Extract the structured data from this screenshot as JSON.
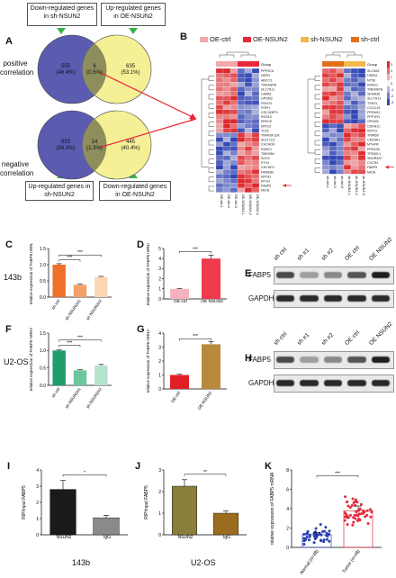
{
  "panelA": {
    "letter": "A",
    "top_left_box": "Down-regulated genes in sh-NSUN2",
    "top_right_box": "Up-regulated genes in OE-NSUN2",
    "bottom_left_box": "Up-regulated genes in sh-NSUN2",
    "bottom_right_box": "Down-regulated genes in OE-NSUN2",
    "positive_label": "positive correlation",
    "negative_label": "negative correlation",
    "venn_top": {
      "left": "555",
      "left_pct": "(46.4%)",
      "mid": "6",
      "mid_pct": "(0.5%)",
      "right": "635",
      "right_pct": "(53.1%)"
    },
    "venn_bottom": {
      "left": "653",
      "left_pct": "(59.3%)",
      "mid": "14",
      "mid_pct": "(1.3%)",
      "right": "445",
      "right_pct": "(40.4%)"
    }
  },
  "panelB": {
    "letter": "B",
    "legend": [
      {
        "label": "OE-ctrl",
        "color": "#f4a6b0"
      },
      {
        "label": "OE-NSUN2",
        "color": "#e8283a"
      },
      {
        "label": "sh-NSUN2",
        "color": "#f3b84a"
      },
      {
        "label": "sh-ctrl",
        "color": "#e0701a"
      }
    ],
    "group_label": "Group",
    "scale_ticks": [
      "3",
      "2",
      "1",
      "0",
      "-1",
      "-2",
      "-3"
    ],
    "left_genes": [
      "PPP3CA",
      "HEPH",
      "ABCC3",
      "TMEM87B",
      "SLC7A11",
      "LAMB1",
      "GPSM3",
      "FBXO3",
      "PSPH",
      "CDC42EP3",
      "RGS10",
      "PRKCE",
      "KRT23",
      "TLR2",
      "TNFRSF12A",
      "SULT1C2",
      "CHCHD6",
      "RASD1",
      "TMEM54",
      "SOX9",
      "ETV4",
      "CHCHD1",
      "FAM83B",
      "KRT81",
      "MT1G",
      "FABP5",
      "MICB"
    ],
    "left_samples": [
      "OE-ctrl-1",
      "OE-ctrl-2",
      "OE-ctrl-3",
      "OE-NSUN2-1",
      "OE-NSUN2-2",
      "OE-NSUN2-3"
    ],
    "right_genes": [
      "SLC5A9",
      "HSPA1",
      "NT5E",
      "RASD1",
      "TMEM87B",
      "SEMA3E",
      "SLC7A11",
      "TSHZ1",
      "CCDC15",
      "PRDM11",
      "PPP1R3",
      "GPSM3",
      "CDKN1C",
      "KRT23",
      "TRIM59",
      "CDK5R1",
      "MTHFR",
      "PRSS35",
      "TPD52L1",
      "SNORA27",
      "CXCR4",
      "FABP5",
      "MICB"
    ],
    "right_samples": [
      "sh-ctrl-1",
      "sh-ctrl-2",
      "sh-ctrl-3",
      "sh-NSUN2-1",
      "sh-NSUN2-2",
      "sh-NSUN2-3"
    ]
  },
  "panelC": {
    "letter": "C",
    "row_label": "143b",
    "ylabel": "relative expression of FABP5 mRNA",
    "chart_data": {
      "type": "bar",
      "categories": [
        "sh ctrl",
        "sh NSUN2#1",
        "sh NSUN2#2"
      ],
      "values": [
        1.0,
        0.38,
        0.62
      ],
      "errors": [
        0.03,
        0.02,
        0.02
      ],
      "colors": [
        "#f07029",
        "#f3a16a",
        "#fbd6b5"
      ],
      "ylim": [
        0,
        1.5
      ],
      "yticks": [
        0.0,
        0.5,
        1.0,
        1.5
      ],
      "sig": [
        "***",
        "***"
      ]
    }
  },
  "panelD": {
    "letter": "D",
    "ylabel": "relative expression of FABP5 mRNA",
    "chart_data": {
      "type": "bar",
      "categories": [
        "OE-ctrl",
        "OE NSUN2"
      ],
      "values": [
        1.0,
        4.0
      ],
      "errors": [
        0.05,
        0.35
      ],
      "colors": [
        "#f5b4bd",
        "#f03a4d"
      ],
      "ylim": [
        0,
        5
      ],
      "yticks": [
        0,
        1,
        2,
        3,
        4,
        5
      ],
      "sig": [
        "***"
      ]
    }
  },
  "panelE": {
    "letter": "E",
    "lanes": [
      "sh ctrl",
      "sh #1",
      "sh #2",
      "OE ctrl",
      "OE NSUN2"
    ],
    "rows": [
      "FABP5",
      "GAPDH"
    ]
  },
  "panelF": {
    "letter": "F",
    "row_label": "U2-OS",
    "ylabel": "relative expression of FABP5 mRNA",
    "chart_data": {
      "type": "bar",
      "categories": [
        "sh ctrl",
        "sh NSUN2#1",
        "sh NSUN2#2"
      ],
      "values": [
        1.0,
        0.43,
        0.57
      ],
      "errors": [
        0.02,
        0.02,
        0.03
      ],
      "colors": [
        "#1f9d6a",
        "#6cc79c",
        "#b7e3cc"
      ],
      "ylim": [
        0,
        1.5
      ],
      "yticks": [
        0.0,
        0.5,
        1.0,
        1.5
      ],
      "sig": [
        "***",
        "***"
      ]
    }
  },
  "panelG": {
    "letter": "G",
    "ylabel": "relative expression of FABP5 mRNA",
    "chart_data": {
      "type": "bar",
      "categories": [
        "OE-ctrl",
        "OE-NSUN2"
      ],
      "values": [
        1.0,
        3.2
      ],
      "errors": [
        0.05,
        0.2
      ],
      "colors": [
        "#e21f26",
        "#b88a3e"
      ],
      "ylim": [
        0,
        4
      ],
      "yticks": [
        0,
        1,
        2,
        3,
        4
      ],
      "sig": [
        "***"
      ]
    }
  },
  "panelH": {
    "letter": "H",
    "lanes": [
      "sh ctrl",
      "sh #1",
      "sh #2",
      "OE ctrl",
      "OE NSUN2"
    ],
    "rows": [
      "FABP5",
      "GAPDH"
    ]
  },
  "panelI": {
    "letter": "I",
    "caption": "143b",
    "ylabel": "RIP/input FABP5",
    "chart_data": {
      "type": "bar",
      "categories": [
        "NSUN2",
        "IgG"
      ],
      "values": [
        2.8,
        1.05
      ],
      "errors": [
        0.55,
        0.15
      ],
      "colors": [
        "#1a1a1a",
        "#8a8a8a"
      ],
      "ylim": [
        0,
        4
      ],
      "yticks": [
        0,
        1,
        2,
        3,
        4
      ],
      "sig": [
        "*"
      ]
    }
  },
  "panelJ": {
    "letter": "J",
    "caption": "U2-OS",
    "ylabel": "RIP/input FABP5",
    "chart_data": {
      "type": "bar",
      "categories": [
        "NSUN2",
        "IgG"
      ],
      "values": [
        2.25,
        1.0
      ],
      "errors": [
        0.3,
        0.1
      ],
      "colors": [
        "#8b7d3c",
        "#9b6b1f"
      ],
      "ylim": [
        0,
        3
      ],
      "yticks": [
        0,
        1,
        2,
        3
      ],
      "sig": [
        "**"
      ]
    }
  },
  "panelK": {
    "letter": "K",
    "ylabel": "relative expression of FABP5 mRNA",
    "chart_data": {
      "type": "scatter",
      "categories": [
        "Normal (n=48)",
        "Tumor (n=48)"
      ],
      "means": [
        1.3,
        3.8
      ],
      "sds": [
        0.65,
        1.2
      ],
      "colors": [
        "#2a3fb0",
        "#e8283a"
      ],
      "ylim": [
        0,
        8
      ],
      "yticks": [
        0,
        2,
        4,
        6,
        8
      ],
      "sig": [
        "***"
      ],
      "n": 48
    }
  }
}
